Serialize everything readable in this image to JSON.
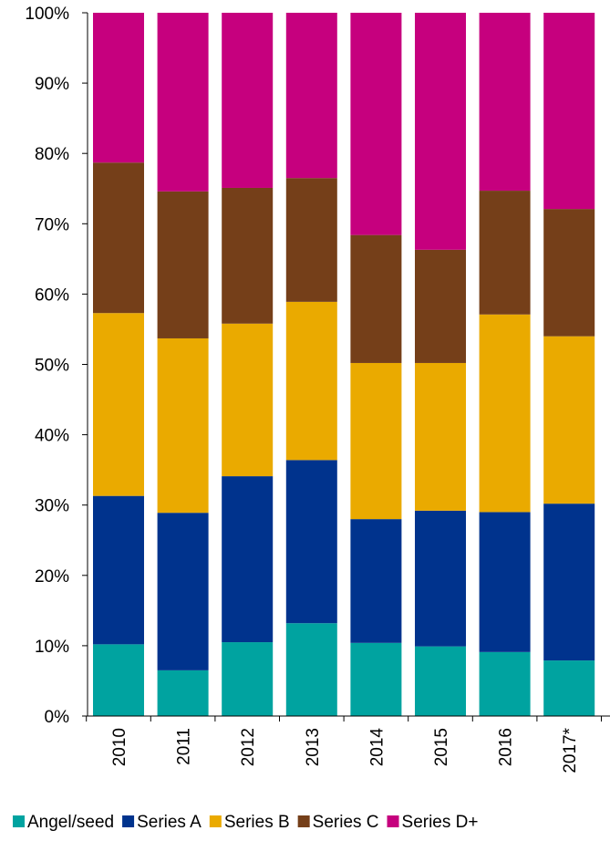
{
  "chart_data": {
    "type": "bar",
    "stacked": true,
    "normalized": true,
    "categories": [
      "2010",
      "2011",
      "2012",
      "2013",
      "2014",
      "2015",
      "2016",
      "2017*"
    ],
    "series": [
      {
        "name": "Angel/seed",
        "color": "#00A3A0",
        "values": [
          10.2,
          6.5,
          10.5,
          13.2,
          10.4,
          9.9,
          9.1,
          7.9
        ]
      },
      {
        "name": "Series A",
        "color": "#00338D",
        "values": [
          21.1,
          22.4,
          23.6,
          23.2,
          17.6,
          19.3,
          19.9,
          22.3
        ]
      },
      {
        "name": "Series B",
        "color": "#EAAA00",
        "values": [
          26.0,
          24.8,
          21.7,
          22.5,
          22.2,
          21.0,
          28.1,
          23.8
        ]
      },
      {
        "name": "Series C",
        "color": "#753F19",
        "values": [
          21.4,
          20.9,
          19.3,
          17.6,
          18.2,
          16.1,
          17.6,
          18.1
        ]
      },
      {
        "name": "Series D+",
        "color": "#C6007E",
        "values": [
          21.3,
          25.4,
          24.9,
          23.5,
          31.6,
          33.7,
          25.3,
          27.9
        ]
      }
    ],
    "y_ticks": [
      "0%",
      "10%",
      "20%",
      "30%",
      "40%",
      "50%",
      "60%",
      "70%",
      "80%",
      "90%",
      "100%"
    ],
    "ylim": [
      0,
      100
    ],
    "grid": false,
    "legend_position": "bottom"
  }
}
